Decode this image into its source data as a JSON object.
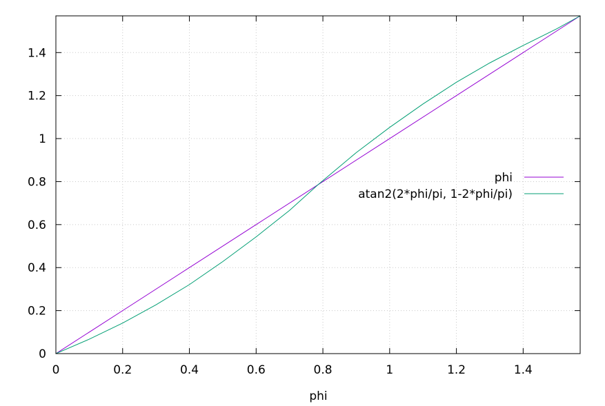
{
  "chart_data": {
    "type": "line",
    "xlabel": "phi",
    "ylabel": "",
    "xlim": [
      0,
      1.5708
    ],
    "ylim": [
      0,
      1.5708
    ],
    "x_ticks": [
      "0",
      "0.2",
      "0.4",
      "0.6",
      "0.8",
      "1",
      "1.2",
      "1.4"
    ],
    "y_ticks": [
      "0",
      "0.2",
      "0.4",
      "0.6",
      "0.8",
      "1",
      "1.2",
      "1.4"
    ],
    "grid": true,
    "legend_position": "right",
    "series": [
      {
        "name": "phi",
        "color": "#9400d3",
        "x": [
          0,
          0.2,
          0.4,
          0.6,
          0.8,
          1.0,
          1.2,
          1.4,
          1.5708
        ],
        "y": [
          0,
          0.2,
          0.4,
          0.6,
          0.8,
          1.0,
          1.2,
          1.4,
          1.5708
        ]
      },
      {
        "name": "atan2(2*phi/pi, 1-2*phi/pi)",
        "color": "#009e73",
        "x": [
          0,
          0.1,
          0.2,
          0.3,
          0.4,
          0.5,
          0.6,
          0.7,
          0.785,
          0.9,
          1.0,
          1.1,
          1.2,
          1.3,
          1.4,
          1.5,
          1.5708
        ],
        "y": [
          0,
          0.067,
          0.142,
          0.227,
          0.321,
          0.428,
          0.543,
          0.666,
          0.785,
          0.935,
          1.052,
          1.161,
          1.262,
          1.352,
          1.433,
          1.51,
          1.5708
        ]
      }
    ]
  }
}
